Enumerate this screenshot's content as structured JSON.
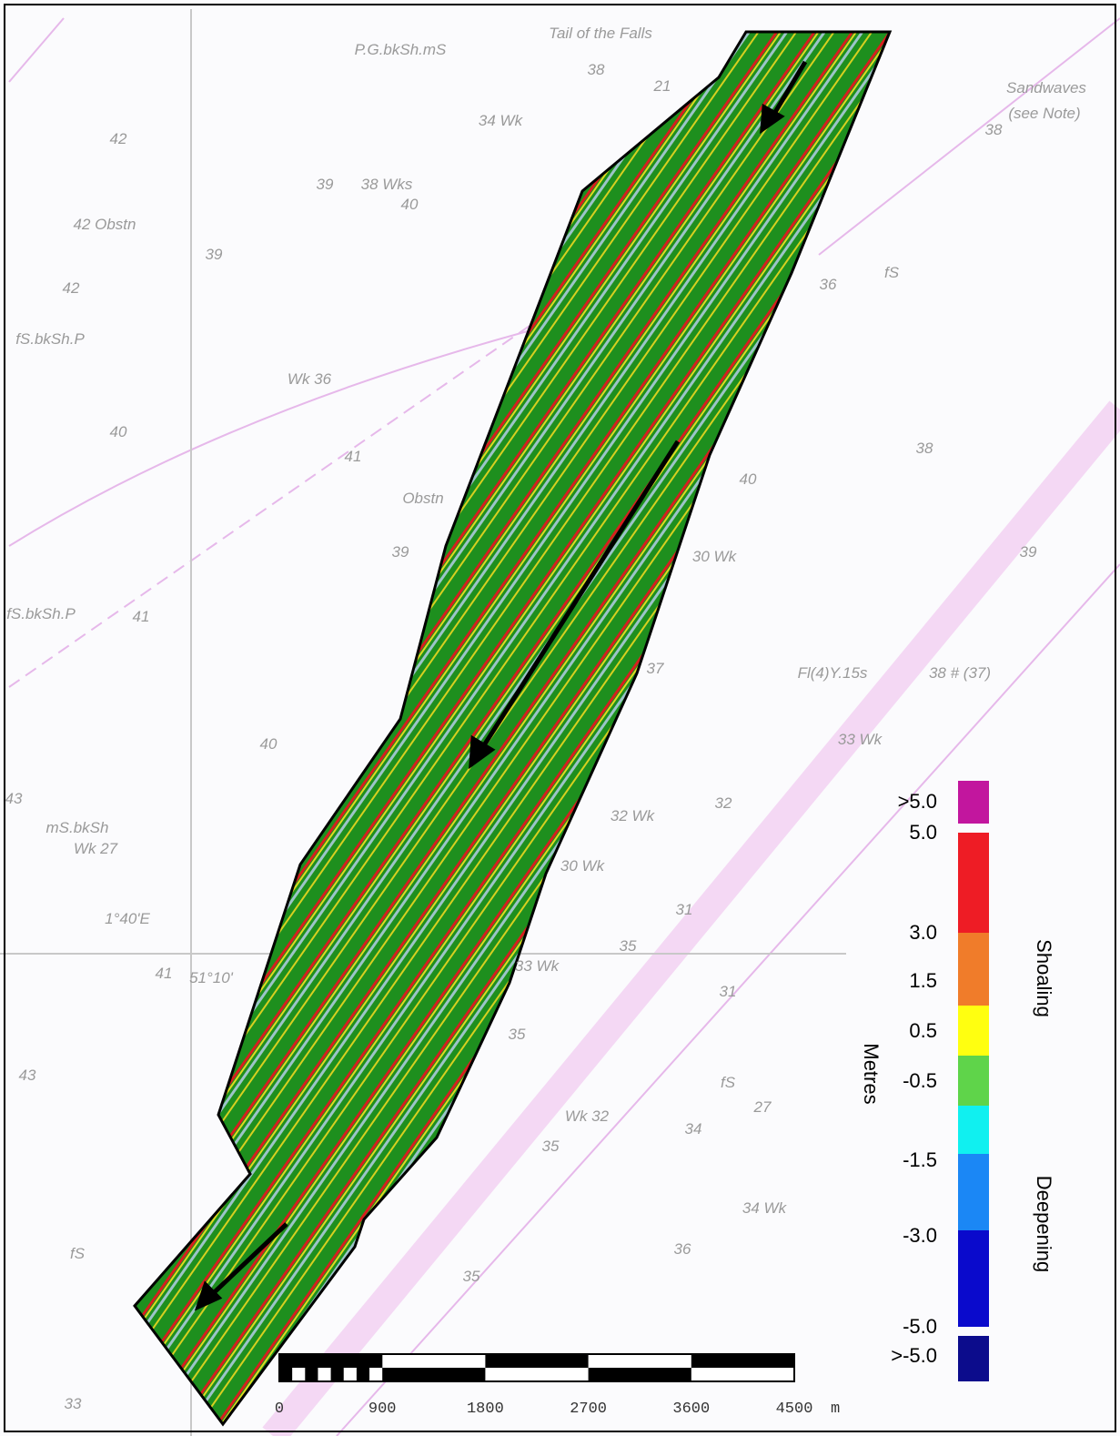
{
  "map_labels": [
    "Tail of the Falls",
    "P.G.bkSh.mS",
    "38",
    "21",
    "34 Wk",
    "Sandwaves",
    "(see Note)",
    "38",
    "42",
    "39",
    "38 Wks",
    "40",
    "42 Obstn",
    "39",
    "42",
    "fS.bkSh.P",
    "36",
    "fS",
    "Wk 36",
    "40",
    "41",
    "38",
    "40",
    "Obstn",
    "39",
    "30 Wk",
    "39",
    "fS.bkSh.P",
    "41",
    "37",
    "Fl(4)Y.15s",
    "38 # (37)",
    "33 Wk",
    "40",
    "43",
    "32 Wk",
    "32",
    "mS.bkSh",
    "Wk 27",
    "30 Wk",
    "1°40'E",
    "31",
    "35",
    "41",
    "51°10'",
    "33 Wk",
    "31",
    "35",
    "43",
    "fS",
    "Wk 32",
    "27",
    "34",
    "35",
    "34 Wk",
    "fS",
    "36",
    "35",
    "33"
  ],
  "legend": {
    "title": "Metres",
    "shoaling": "Shoaling",
    "deepening": "Deepening",
    "classes": [
      {
        "label": ">5.0",
        "color": "#c2169e"
      },
      {
        "label": "5.0",
        "color": "#ee1c25"
      },
      {
        "label": "3.0",
        "color": "#f07c2a"
      },
      {
        "label": "1.5",
        "color": "#ffff10"
      },
      {
        "label": "0.5",
        "color": "#5fd44a"
      },
      {
        "label": "-0.5",
        "color": "#10f0f0"
      },
      {
        "label": "-1.5",
        "color": "#1b87f5"
      },
      {
        "label": "-3.0",
        "color": "#0a0acc"
      },
      {
        "label": "-5.0",
        "color": null
      },
      {
        "label": ">-5.0",
        "color": "#0c0c8c"
      }
    ]
  },
  "scale_bar": {
    "ticks": [
      "0",
      "900",
      "1800",
      "2700",
      "3600",
      "4500"
    ],
    "unit": "m"
  }
}
